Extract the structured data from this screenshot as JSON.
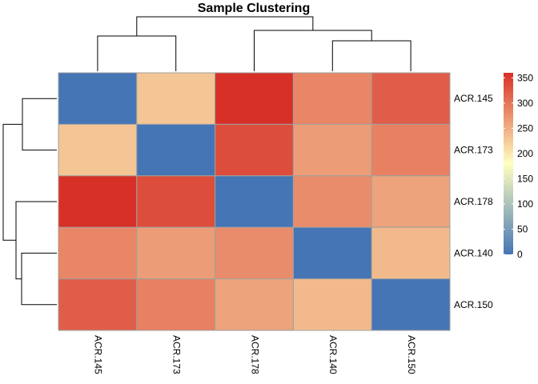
{
  "chart_data": {
    "type": "heatmap",
    "title": "Sample Clustering",
    "rows": [
      "ACR.145",
      "ACR.173",
      "ACR.178",
      "ACR.140",
      "ACR.150"
    ],
    "columns": [
      "ACR.145",
      "ACR.173",
      "ACR.178",
      "ACR.140",
      "ACR.150"
    ],
    "values": [
      [
        0,
        230,
        360,
        285,
        320
      ],
      [
        230,
        0,
        335,
        265,
        290
      ],
      [
        360,
        335,
        0,
        280,
        260
      ],
      [
        285,
        265,
        280,
        0,
        240
      ],
      [
        320,
        290,
        260,
        240,
        0
      ]
    ],
    "colorbar": {
      "min": 0,
      "max": 360,
      "ticks": [
        0,
        50,
        100,
        150,
        200,
        250,
        300,
        350
      ],
      "colors": [
        "#4575B4",
        "#FFFFBF",
        "#D73027"
      ]
    },
    "dendrogram": {
      "top_shown": true,
      "left_shown": true
    },
    "cell_border_color": "#A0A0A0"
  }
}
